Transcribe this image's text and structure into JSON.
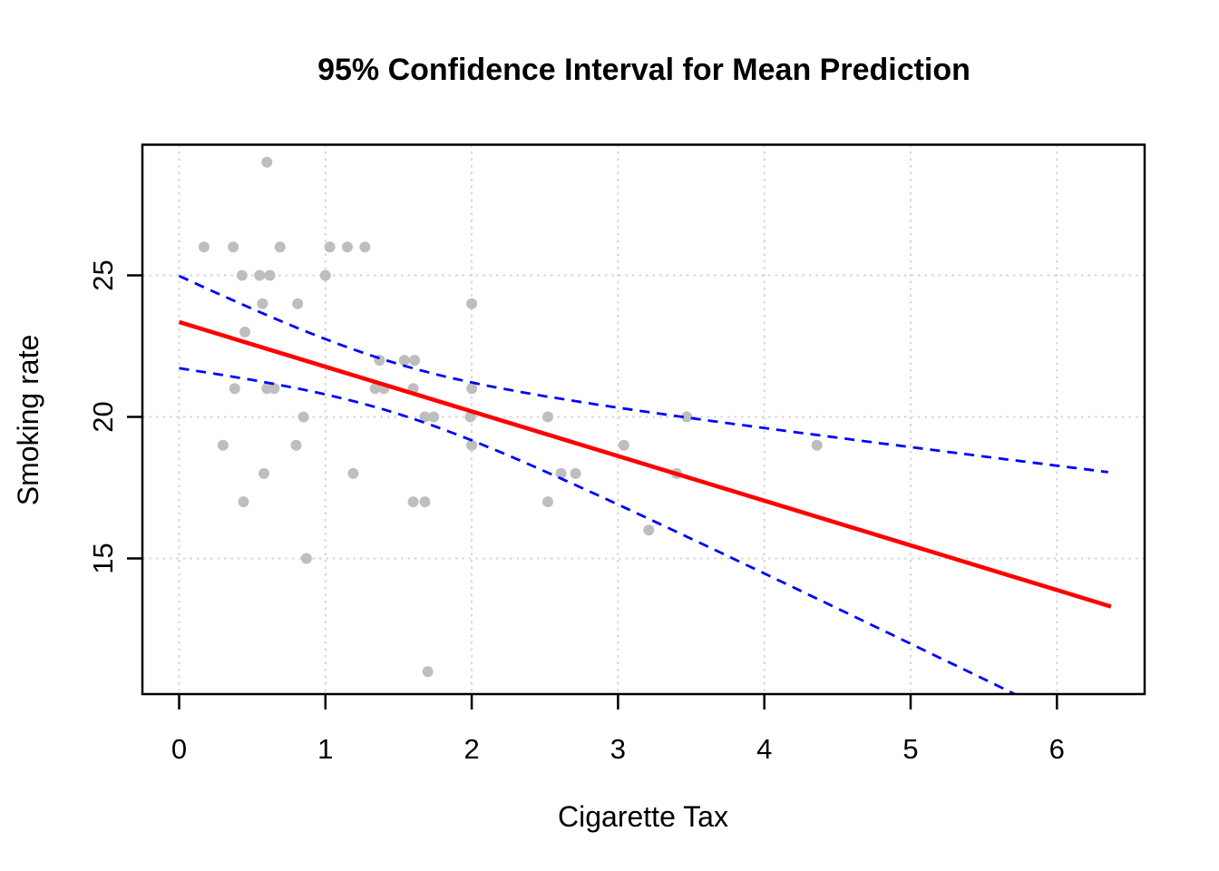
{
  "chart_data": {
    "type": "scatter",
    "title": "95% Confidence Interval for Mean Prediction",
    "xlabel": "Cigarette Tax",
    "ylabel": "Smoking rate",
    "x_ticks": [
      0,
      1,
      2,
      3,
      4,
      5,
      6
    ],
    "y_ticks": [
      15,
      20,
      25
    ],
    "xlim": [
      -0.25,
      6.6
    ],
    "ylim": [
      10.2,
      29.6
    ],
    "grid": "dotted light-gray lines at every axis tick",
    "legend": "none",
    "point_color": "#BEBEBE",
    "points": [
      [
        0.17,
        26
      ],
      [
        0.3,
        19
      ],
      [
        0.37,
        26
      ],
      [
        0.38,
        21
      ],
      [
        0.43,
        25
      ],
      [
        0.44,
        17
      ],
      [
        0.45,
        23
      ],
      [
        0.55,
        25
      ],
      [
        0.57,
        24
      ],
      [
        0.58,
        18
      ],
      [
        0.6,
        29
      ],
      [
        0.6,
        21
      ],
      [
        0.62,
        25
      ],
      [
        0.65,
        21
      ],
      [
        0.69,
        26
      ],
      [
        0.8,
        19
      ],
      [
        0.81,
        24
      ],
      [
        0.85,
        20
      ],
      [
        0.87,
        15
      ],
      [
        1.0,
        25
      ],
      [
        1.03,
        26
      ],
      [
        1.15,
        26
      ],
      [
        1.19,
        18
      ],
      [
        1.27,
        26
      ],
      [
        1.34,
        21
      ],
      [
        1.37,
        22
      ],
      [
        1.4,
        21
      ],
      [
        1.54,
        22
      ],
      [
        1.6,
        21
      ],
      [
        1.6,
        17
      ],
      [
        1.61,
        22
      ],
      [
        1.68,
        20
      ],
      [
        1.68,
        17
      ],
      [
        1.7,
        11
      ],
      [
        1.74,
        20
      ],
      [
        1.99,
        20
      ],
      [
        2.0,
        24
      ],
      [
        2.0,
        21
      ],
      [
        2.0,
        19
      ],
      [
        2.52,
        20
      ],
      [
        2.52,
        17
      ],
      [
        2.61,
        18
      ],
      [
        2.71,
        18
      ],
      [
        3.04,
        19
      ],
      [
        3.21,
        16
      ],
      [
        3.4,
        18
      ],
      [
        3.47,
        20
      ],
      [
        4.36,
        19
      ]
    ],
    "regression_line": {
      "description": "fitted least-squares line",
      "color": "#FF0000",
      "style": "solid",
      "intercept": 23.35,
      "slope": -1.578,
      "x_start": 0,
      "x_end": 6.37,
      "y_start": 23.35,
      "y_end": 13.3
    },
    "confidence_band": {
      "description": "95% confidence bounds for mean prediction (dashed)",
      "color": "#0000FF",
      "style": "dashed",
      "x_start": 0,
      "x_end": 6.37,
      "halfwidth_min": 0.88,
      "halfwidth_center_x": 1.45,
      "halfwidth_spread": 0.93,
      "upper_at_x0": 25.0,
      "lower_at_x0": 21.7,
      "upper_at_x6": 18.3,
      "lower_exits_plot_at_x": 5.77
    },
    "colors": {
      "background": "#FFFFFF",
      "box_border": "#000000",
      "gridline": "#D4D4D4",
      "tick_text": "#000000"
    }
  }
}
